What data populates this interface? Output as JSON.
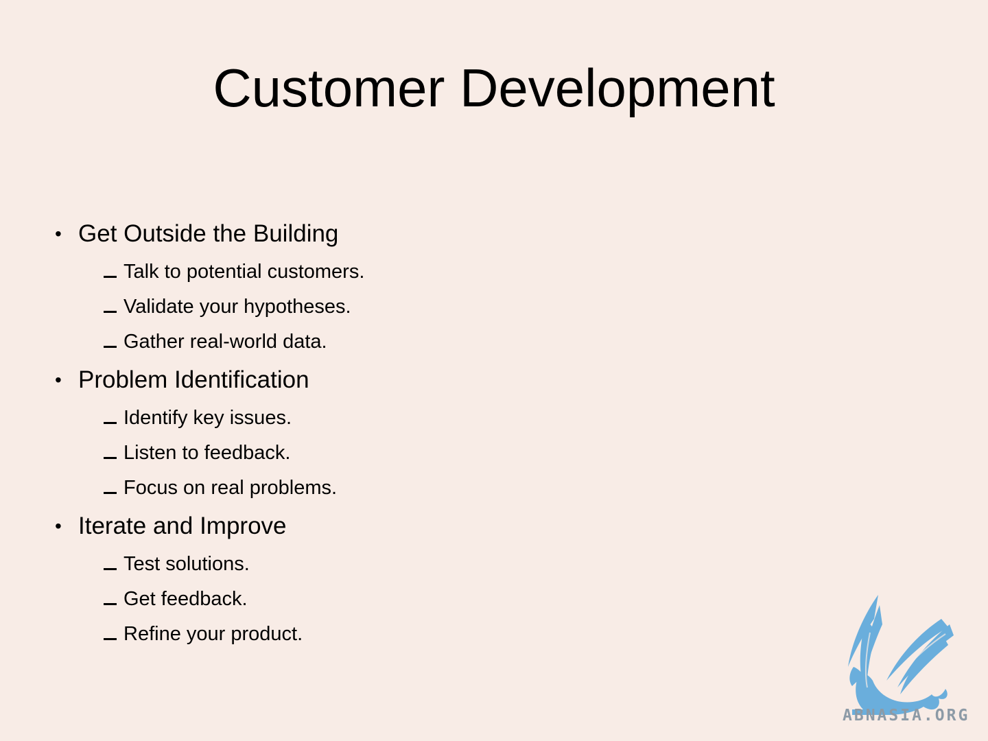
{
  "slide": {
    "title": "Customer Development",
    "sections": [
      {
        "heading": "Get Outside the Building",
        "items": [
          "Talk to potential customers.",
          "Validate your hypotheses.",
          "Gather real-world data."
        ]
      },
      {
        "heading": "Problem Identification",
        "items": [
          "Identify key issues.",
          "Listen to feedback.",
          "Focus on real problems."
        ]
      },
      {
        "heading": "Iterate and Improve",
        "items": [
          "Test solutions.",
          "Get feedback.",
          "Refine your product."
        ]
      }
    ]
  },
  "watermark": {
    "text": "ABNASIA.ORG",
    "icon": "griffin-logo-icon",
    "color": "#6aaedc"
  },
  "colors": {
    "background": "#f8ece6",
    "text": "#000000"
  }
}
